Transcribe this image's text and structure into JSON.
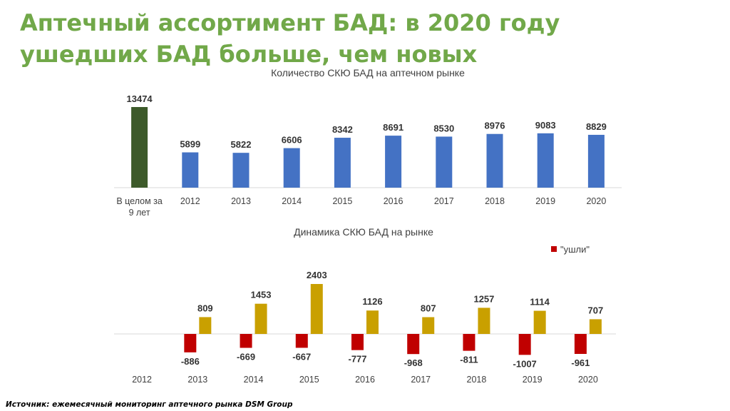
{
  "slide": {
    "title_line1": "Аптечный ассортимент БАД: в 2020 году",
    "title_line2": "ушедших БАД больше, чем новых",
    "source": "Источник: ежемесячный мониторинг аптечного рынка DSM Group"
  },
  "chart_data": [
    {
      "type": "bar",
      "title": "Количество СКЮ БАД на аптечном рынке",
      "categories": [
        "В целом за 9 лет",
        "2012",
        "2013",
        "2014",
        "2015",
        "2016",
        "2017",
        "2018",
        "2019",
        "2020"
      ],
      "category_lines": [
        [
          "В целом за",
          "9 лет"
        ],
        [
          "2012"
        ],
        [
          "2013"
        ],
        [
          "2014"
        ],
        [
          "2015"
        ],
        [
          "2016"
        ],
        [
          "2017"
        ],
        [
          "2018"
        ],
        [
          "2019"
        ],
        [
          "2020"
        ]
      ],
      "values": [
        13474,
        5899,
        5822,
        6606,
        8342,
        8691,
        8530,
        8976,
        9083,
        8829
      ],
      "colors": [
        "#3d5a2a",
        "#4472c4",
        "#4472c4",
        "#4472c4",
        "#4472c4",
        "#4472c4",
        "#4472c4",
        "#4472c4",
        "#4472c4",
        "#4472c4"
      ],
      "ylim": [
        0,
        14000
      ],
      "grid": false,
      "data_labels": true
    },
    {
      "type": "bar",
      "title": "Динамика СКЮ БАД на рынке",
      "categories": [
        "2012",
        "2013",
        "2014",
        "2015",
        "2016",
        "2017",
        "2018",
        "2019",
        "2020"
      ],
      "series": [
        {
          "name": "\"ушли\"",
          "color": "#c00000",
          "values": [
            null,
            -886,
            -669,
            -667,
            -777,
            -968,
            -811,
            -1007,
            -961
          ]
        },
        {
          "name": "",
          "color": "#c9a000",
          "values": [
            null,
            809,
            1453,
            2403,
            1126,
            807,
            1257,
            1114,
            707
          ]
        }
      ],
      "ylim": [
        -1100,
        2500
      ],
      "grid": false,
      "legend": "top-right",
      "data_labels": true
    }
  ]
}
